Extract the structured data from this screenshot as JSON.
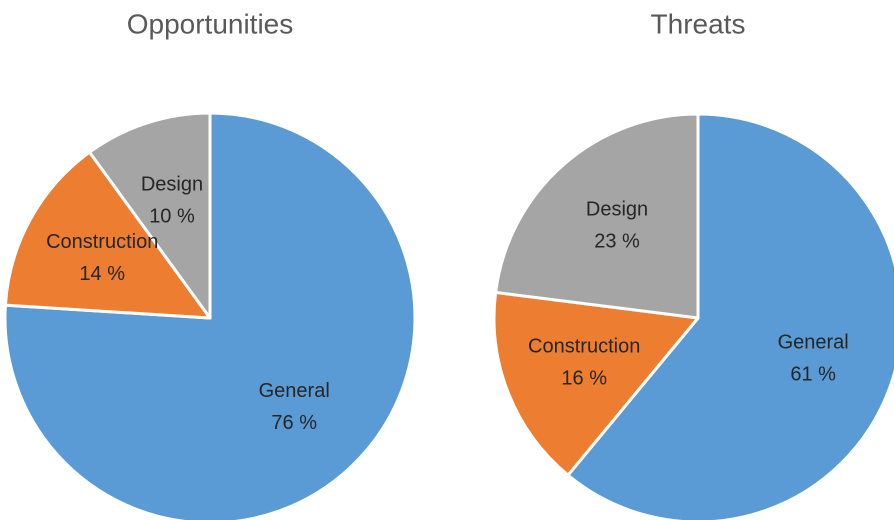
{
  "chart_data": [
    {
      "type": "pie",
      "title": "Opportunities",
      "categories": [
        "General",
        "Construction",
        "Design"
      ],
      "values": [
        76,
        14,
        10
      ],
      "value_labels": [
        "76 %",
        "14 %",
        "10 %"
      ],
      "colors": [
        "#5b9bd5",
        "#ed7d31",
        "#a5a5a5"
      ]
    },
    {
      "type": "pie",
      "title": "Threats",
      "categories": [
        "General",
        "Construction",
        "Design"
      ],
      "values": [
        61,
        16,
        23
      ],
      "value_labels": [
        "61 %",
        "16 %",
        "23 %"
      ],
      "colors": [
        "#5b9bd5",
        "#ed7d31",
        "#a5a5a5"
      ]
    }
  ]
}
